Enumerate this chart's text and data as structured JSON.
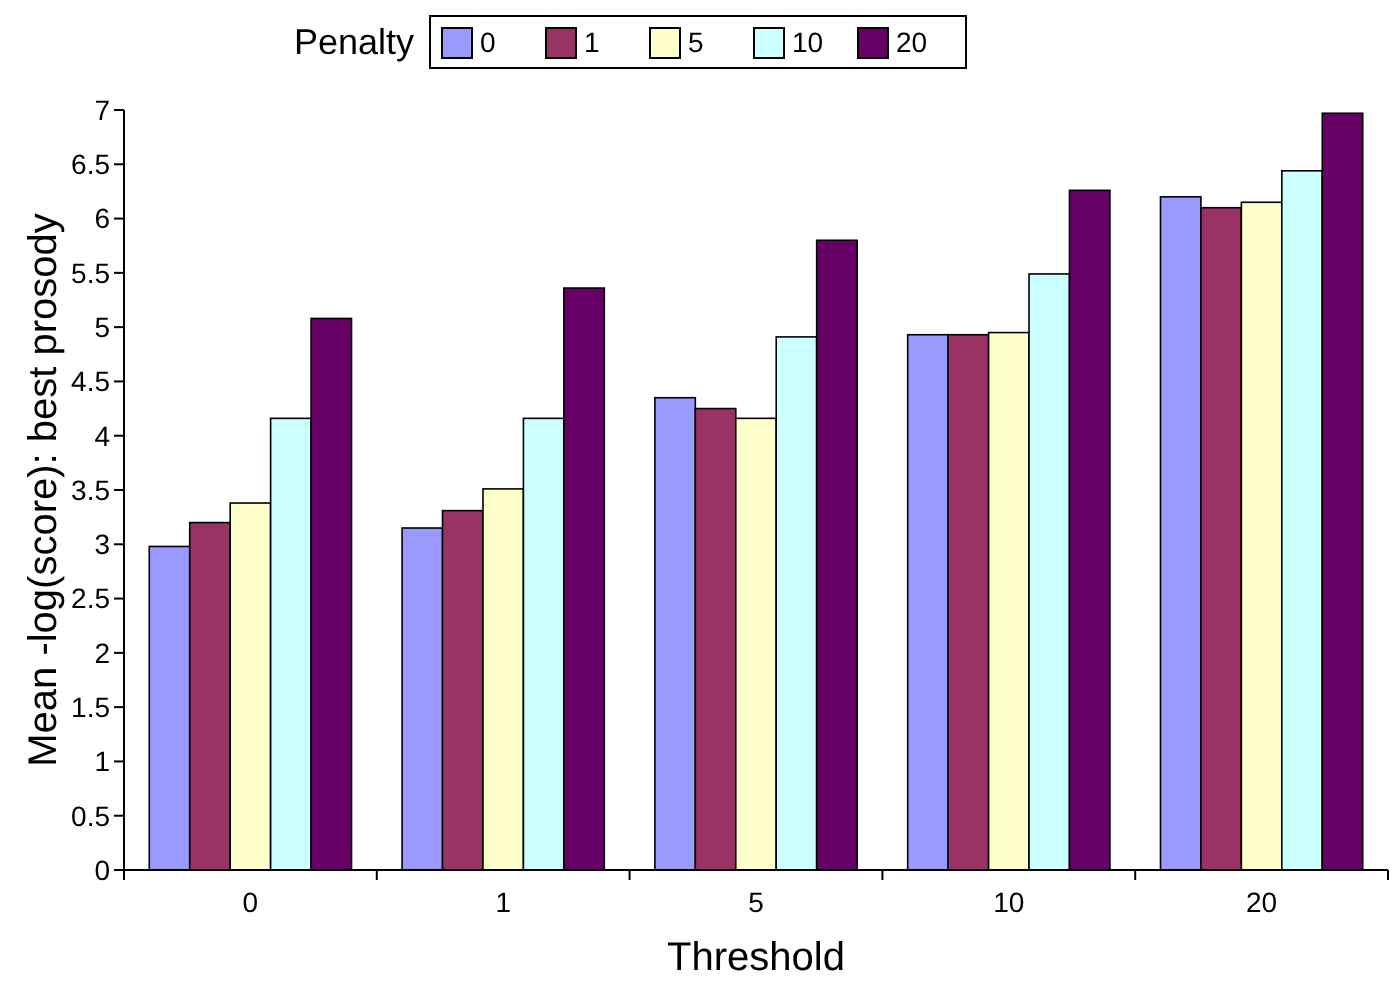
{
  "chart_data": {
    "type": "bar",
    "xlabel": "Threshold",
    "ylabel": "Mean -log(score): best prosody",
    "legend_title": "Penalty",
    "legend": "top",
    "grid": false,
    "categories": [
      "0",
      "1",
      "5",
      "10",
      "20"
    ],
    "ylim": [
      0,
      7
    ],
    "yticks": [
      0,
      0.5,
      1,
      1.5,
      2,
      2.5,
      3,
      3.5,
      4,
      4.5,
      5,
      5.5,
      6,
      6.5,
      7
    ],
    "series": [
      {
        "name": "0",
        "color": "#9999ff",
        "values": [
          2.98,
          3.15,
          4.35,
          4.93,
          6.2
        ]
      },
      {
        "name": "1",
        "color": "#993366",
        "values": [
          3.2,
          3.31,
          4.25,
          4.93,
          6.1
        ]
      },
      {
        "name": "5",
        "color": "#ffffcc",
        "values": [
          3.38,
          3.51,
          4.16,
          4.95,
          6.15
        ]
      },
      {
        "name": "10",
        "color": "#ccffff",
        "values": [
          4.16,
          4.16,
          4.91,
          5.49,
          6.44
        ]
      },
      {
        "name": "20",
        "color": "#660066",
        "values": [
          5.08,
          5.36,
          5.8,
          6.26,
          6.97
        ]
      }
    ]
  }
}
